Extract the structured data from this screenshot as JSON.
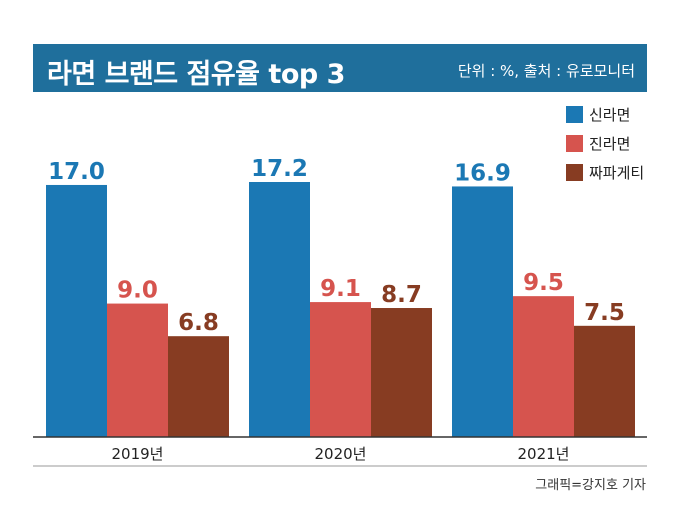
{
  "header": {
    "title": "라면 브랜드 점유율 top 3",
    "unit_source": "단위 : %, 출처 : 유로모니터"
  },
  "credit": "그래픽=강지호 기자",
  "colors": {
    "header_bg": "#1f6f9c",
    "shin": "#1b78b4",
    "jin": "#d6544e",
    "chapa": "#873c22"
  },
  "chart_data": {
    "type": "bar",
    "categories": [
      "2019년",
      "2020년",
      "2021년"
    ],
    "series": [
      {
        "name": "신라면",
        "values": [
          17.0,
          17.2,
          16.9
        ],
        "color": "#1b78b4"
      },
      {
        "name": "진라면",
        "values": [
          9.0,
          9.1,
          9.5
        ],
        "color": "#d6544e"
      },
      {
        "name": "짜파게티",
        "values": [
          6.8,
          8.7,
          7.5
        ],
        "color": "#873c22"
      }
    ],
    "value_labels": [
      [
        "17.0",
        "17.2",
        "16.9"
      ],
      [
        "9.0",
        "9.1",
        "9.5"
      ],
      [
        "6.8",
        "8.7",
        "7.5"
      ]
    ],
    "ylim": [
      0,
      17.2
    ],
    "legend": "top-right",
    "grid": false
  }
}
